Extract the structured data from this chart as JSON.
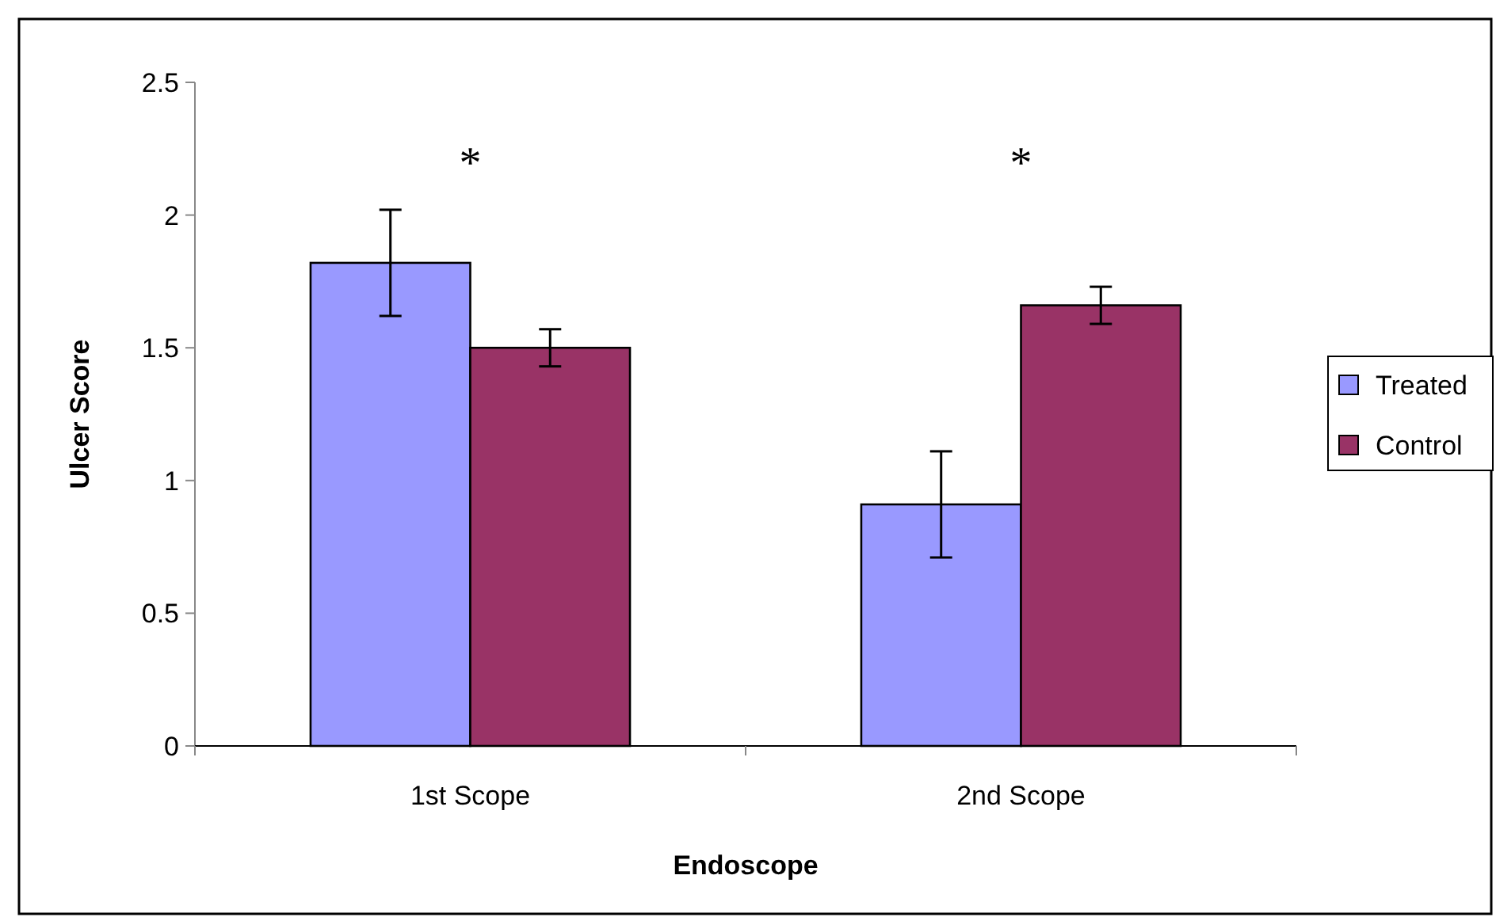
{
  "chart_data": {
    "type": "bar",
    "xlabel": "Endoscope",
    "ylabel": "Ulcer Score",
    "categories": [
      "1st Scope",
      "2nd Scope"
    ],
    "series": [
      {
        "name": "Treated",
        "color": "#9999ff",
        "values": [
          1.82,
          0.91
        ],
        "errors": [
          0.2,
          0.2
        ]
      },
      {
        "name": "Control",
        "color": "#993366",
        "values": [
          1.5,
          1.66
        ],
        "errors": [
          0.07,
          0.07
        ]
      }
    ],
    "ylim": [
      0,
      2.5
    ],
    "yticks": [
      0,
      0.5,
      1,
      1.5,
      2,
      2.5
    ],
    "grid": false,
    "legend": "right",
    "annotations": [
      "*",
      "*"
    ]
  }
}
